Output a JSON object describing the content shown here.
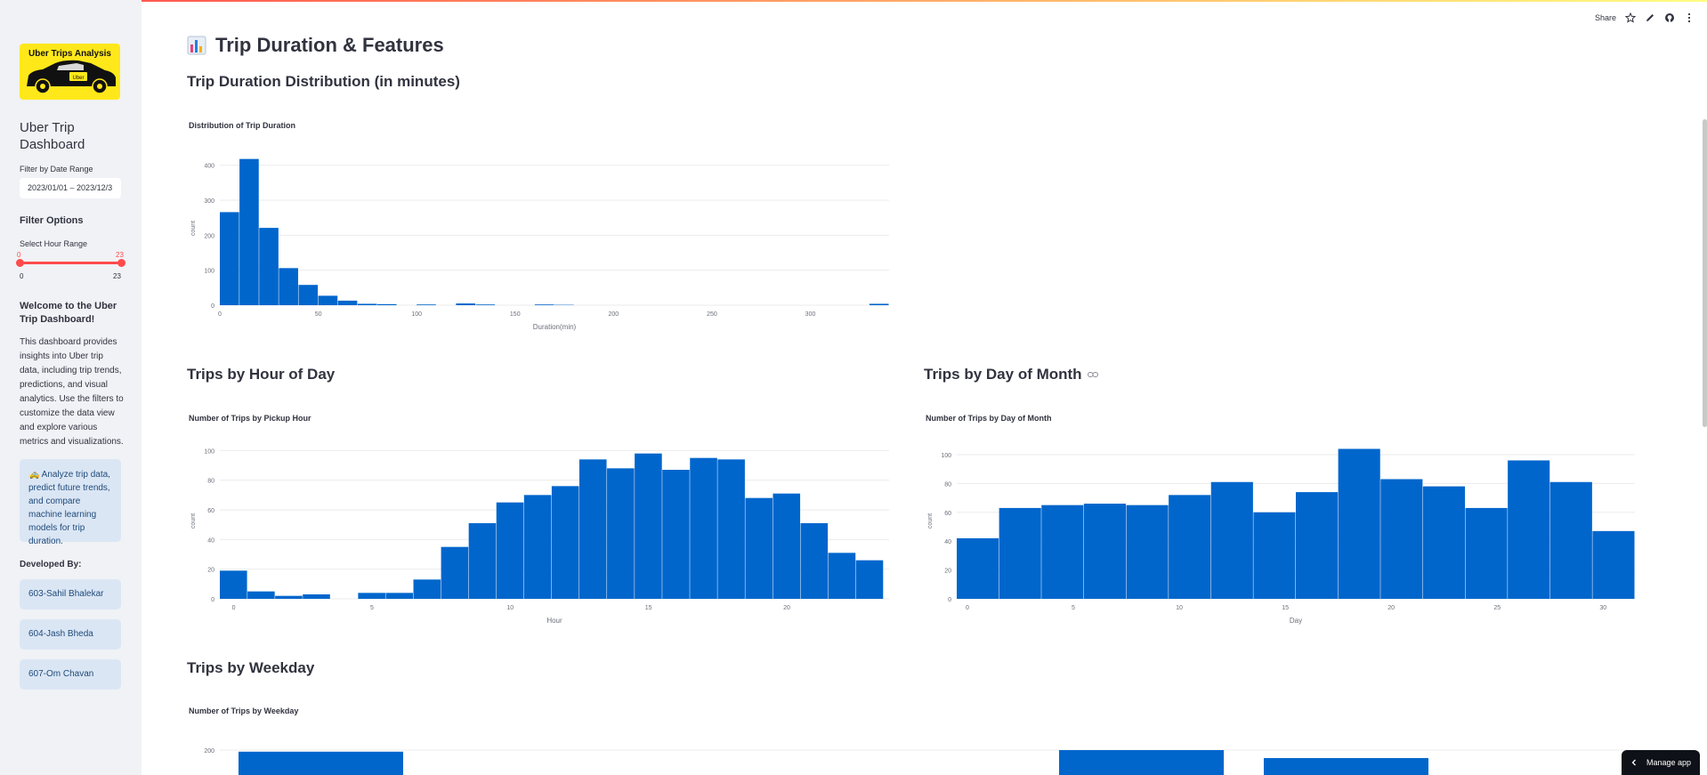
{
  "sidebar": {
    "logo_text": "Uber Trips Analysis",
    "logo_car_text": "Uber",
    "title": "Uber Trip Dashboard",
    "date_filter_label": "Filter by Date Range",
    "date_value": "2023/01/01 – 2023/12/3",
    "filter_options_heading": "Filter Options",
    "hour_range_label": "Select Hour Range",
    "hour_range": {
      "min": 0,
      "max": 23,
      "selected_min": "0",
      "selected_max": "23",
      "tick_min": "0",
      "tick_max": "23"
    },
    "welcome_heading": "Welcome to the Uber Trip Dashboard!",
    "welcome_text": "This dashboard provides insights into Uber trip data, including trip trends, predictions, and visual analytics. Use the filters to customize the data view and explore various metrics and visualizations.",
    "info_text": "🚕 Analyze trip data, predict future trends, and compare machine learning models for trip duration.",
    "developed_by_heading": "Developed By:",
    "developers": [
      "603-Sahil Bhalekar",
      "604-Jash Bheda",
      "607-Om Chavan"
    ]
  },
  "header": {
    "share_label": "Share",
    "manage_app_label": "Manage app"
  },
  "main": {
    "page_title": "Trip Duration & Features",
    "page_icon": "📊",
    "section_duration": "Trip Duration Distribution (in minutes)",
    "section_hour": "Trips by Hour of Day",
    "section_day": "Trips by Day of Month",
    "section_weekday": "Trips by Weekday"
  },
  "colors": {
    "bar": "#0066cc",
    "accent": "#ff4b4b",
    "sidebar_bg": "#f0f2f6"
  },
  "chart_data": [
    {
      "type": "bar",
      "title": "Distribution of Trip Duration",
      "xlabel": "Duration(min)",
      "ylabel": "count",
      "x_ticks": [
        "0",
        "50",
        "100",
        "150",
        "200",
        "250",
        "300"
      ],
      "y_ticks": [
        "0",
        "100",
        "200",
        "300",
        "400"
      ],
      "xlim": [
        0,
        340
      ],
      "ylim": [
        0,
        440
      ],
      "bin_width": 10,
      "bin_starts": [
        0,
        10,
        20,
        30,
        40,
        50,
        60,
        70,
        80,
        100,
        120,
        130,
        160,
        170,
        330
      ],
      "values": [
        266,
        418,
        221,
        106,
        58,
        27,
        13,
        4,
        3,
        2,
        5,
        2,
        2,
        1,
        4
      ]
    },
    {
      "type": "bar",
      "title": "Number of Trips by Pickup Hour",
      "xlabel": "Hour",
      "ylabel": "count",
      "x_ticks": [
        "0",
        "5",
        "10",
        "15",
        "20"
      ],
      "y_ticks": [
        "0",
        "20",
        "40",
        "60",
        "80",
        "100"
      ],
      "ylim": [
        0,
        105
      ],
      "categories": [
        0,
        1,
        2,
        3,
        4,
        5,
        6,
        7,
        8,
        9,
        10,
        11,
        12,
        13,
        14,
        15,
        16,
        17,
        18,
        19,
        20,
        21,
        22,
        23
      ],
      "values": [
        19,
        5,
        2,
        3,
        0,
        4,
        4,
        13,
        35,
        51,
        65,
        70,
        76,
        94,
        88,
        98,
        87,
        95,
        94,
        68,
        71,
        51,
        31,
        26
      ]
    },
    {
      "type": "bar",
      "title": "Number of Trips by Day of Month",
      "xlabel": "Day",
      "ylabel": "count",
      "x_ticks": [
        "0",
        "5",
        "10",
        "15",
        "20",
        "25",
        "30"
      ],
      "y_ticks": [
        "0",
        "20",
        "40",
        "60",
        "80",
        "100"
      ],
      "ylim": [
        0,
        108
      ],
      "bin_starts": [
        0,
        2,
        4,
        6,
        8,
        10,
        12,
        14,
        16,
        18,
        20,
        22,
        24,
        26,
        28,
        30
      ],
      "bin_width": 2,
      "values": [
        42,
        63,
        65,
        66,
        65,
        72,
        81,
        60,
        74,
        104,
        83,
        78,
        63,
        96,
        81,
        47
      ]
    },
    {
      "type": "bar",
      "title": "Number of Trips by Weekday",
      "y_ticks": [
        "200"
      ],
      "values": [
        197,
        200,
        185
      ]
    }
  ]
}
